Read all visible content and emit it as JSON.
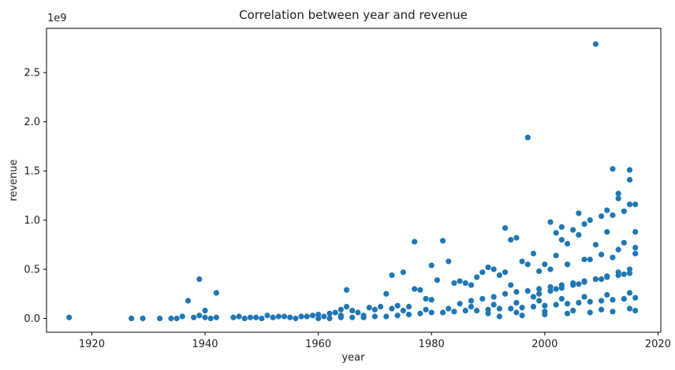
{
  "chart_data": {
    "type": "scatter",
    "title": "Correlation between year and revenue",
    "xlabel": "year",
    "ylabel": "revenue",
    "y_offset_label": "1e9",
    "xlim": [
      1912,
      2020.5
    ],
    "ylim": [
      -0.14,
      2.95
    ],
    "x_ticks": [
      1920,
      1940,
      1960,
      1980,
      2000,
      2020
    ],
    "x_tick_labels": [
      "1920",
      "1940",
      "1960",
      "1980",
      "2000",
      "2020"
    ],
    "y_ticks": [
      0.0,
      0.5,
      1.0,
      1.5,
      2.0,
      2.5
    ],
    "y_tick_labels": [
      "0.0",
      "0.5",
      "1.0",
      "1.5",
      "2.0",
      "2.5"
    ],
    "grid": false,
    "point_color": "#1f77b4",
    "series": [
      {
        "values_note_unit": "1e9",
        "x": [
          1916,
          1927,
          1929,
          1932,
          1934,
          1935,
          1936,
          1937,
          1938,
          1939,
          1939,
          1940,
          1940,
          1941,
          1942,
          1942,
          1945,
          1946,
          1947,
          1948,
          1949,
          1950,
          1951,
          1952,
          1953,
          1954,
          1955,
          1956,
          1957,
          1958,
          1959,
          1960,
          1961,
          1962,
          1963,
          1964,
          1964,
          1965,
          1965,
          1966,
          1967,
          1968,
          1969,
          1970,
          1971,
          1972,
          1973,
          1973,
          1974,
          1975,
          1976,
          1977,
          1977,
          1978,
          1979,
          1980,
          1980,
          1981,
          1982,
          1983,
          1984,
          1985,
          1986,
          1987,
          1988,
          1989,
          1990,
          1991,
          1992,
          1993,
          1993,
          1994,
          1994,
          1995,
          1996,
          1997,
          1997,
          1998,
          1999,
          2000,
          2001,
          2002,
          2002,
          2003,
          2003,
          2004,
          2005,
          2006,
          2006,
          2007,
          2008,
          2009,
          2009,
          2010,
          2011,
          2011,
          2012,
          2012,
          2013,
          2013,
          2014,
          2014,
          2015,
          2015,
          2015,
          2016,
          2016,
          1960,
          1962,
          1964,
          1966,
          1968,
          1970,
          1972,
          1974,
          1976,
          1978,
          1980,
          1982,
          1984,
          1986,
          1988,
          1990,
          1992,
          1994,
          1996,
          1998,
          2000,
          2002,
          2004,
          2006,
          2008,
          2010,
          2012,
          2014,
          2016,
          1985,
          1987,
          1989,
          1991,
          1993,
          1995,
          1997,
          1999,
          2001,
          2003,
          2005,
          2007,
          2009,
          2011,
          2013,
          2015,
          1990,
          1995,
          2000,
          2005,
          2010,
          2015,
          1998,
          2002,
          2006,
          2010,
          2014,
          1999,
          2001,
          2003,
          2005,
          2007,
          2009,
          2011,
          2013,
          2015,
          2004,
          2008,
          2012,
          2016,
          1992,
          1996,
          2000,
          2004,
          2008,
          2012,
          2016,
          2001,
          2004,
          2007,
          2010,
          2013,
          2016,
          1975,
          1979,
          1983,
          1987,
          1991,
          1995,
          1999,
          2003,
          2007,
          2011,
          2015
        ],
        "y": [
          0.01,
          0.0,
          0.0,
          0.0,
          0.0,
          0.0,
          0.02,
          0.18,
          0.01,
          0.4,
          0.03,
          0.08,
          0.01,
          0.0,
          0.26,
          0.01,
          0.01,
          0.02,
          0.0,
          0.01,
          0.01,
          0.0,
          0.03,
          0.01,
          0.02,
          0.02,
          0.01,
          0.0,
          0.02,
          0.02,
          0.03,
          0.04,
          0.02,
          0.05,
          0.06,
          0.09,
          0.03,
          0.29,
          0.12,
          0.08,
          0.06,
          0.03,
          0.11,
          0.09,
          0.12,
          0.25,
          0.44,
          0.1,
          0.13,
          0.47,
          0.12,
          0.78,
          0.3,
          0.29,
          0.2,
          0.54,
          0.19,
          0.39,
          0.79,
          0.58,
          0.36,
          0.38,
          0.36,
          0.34,
          0.42,
          0.47,
          0.52,
          0.5,
          0.44,
          0.92,
          0.47,
          0.8,
          0.34,
          0.82,
          0.58,
          1.84,
          0.55,
          0.66,
          0.48,
          0.55,
          0.98,
          0.87,
          0.64,
          0.93,
          0.8,
          0.76,
          0.9,
          1.07,
          0.85,
          0.96,
          1.0,
          2.79,
          0.75,
          1.04,
          1.1,
          0.88,
          1.52,
          1.05,
          1.27,
          1.22,
          1.09,
          0.77,
          1.51,
          1.41,
          1.16,
          1.16,
          0.88,
          0.0,
          0.0,
          0.01,
          0.01,
          0.01,
          0.02,
          0.02,
          0.03,
          0.04,
          0.05,
          0.06,
          0.06,
          0.07,
          0.08,
          0.08,
          0.09,
          0.1,
          0.1,
          0.11,
          0.12,
          0.13,
          0.14,
          0.15,
          0.16,
          0.17,
          0.18,
          0.19,
          0.2,
          0.21,
          0.15,
          0.18,
          0.2,
          0.22,
          0.25,
          0.27,
          0.28,
          0.3,
          0.32,
          0.34,
          0.36,
          0.38,
          0.4,
          0.42,
          0.44,
          0.46,
          0.05,
          0.06,
          0.07,
          0.08,
          0.09,
          0.1,
          0.22,
          0.3,
          0.35,
          0.4,
          0.45,
          0.25,
          0.28,
          0.31,
          0.34,
          0.37,
          0.4,
          0.43,
          0.47,
          0.5,
          0.55,
          0.6,
          0.62,
          0.66,
          0.02,
          0.03,
          0.04,
          0.05,
          0.06,
          0.07,
          0.08,
          0.5,
          0.55,
          0.6,
          0.65,
          0.7,
          0.72,
          0.08,
          0.09,
          0.1,
          0.12,
          0.14,
          0.16,
          0.18,
          0.2,
          0.22,
          0.24,
          0.26
        ]
      }
    ]
  }
}
